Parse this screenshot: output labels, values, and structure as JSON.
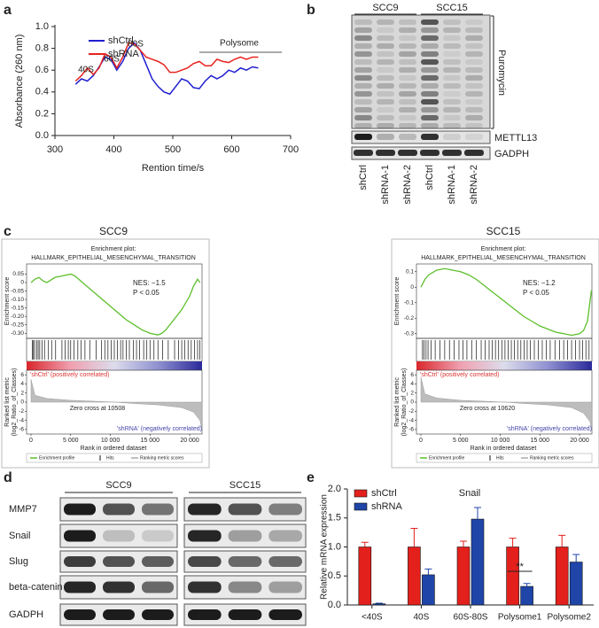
{
  "panel_labels": [
    "a",
    "b",
    "c",
    "d",
    "e"
  ],
  "chart_data": [
    {
      "type": "line",
      "x_label": "Rention time/s",
      "y_label": "Absorbance (260 nm)",
      "xlim": [
        300,
        700
      ],
      "xticks": [
        300,
        400,
        500,
        600,
        700
      ],
      "ylim": [
        0,
        1.0
      ],
      "yticks": [
        {
          "value": 0,
          "label": "0.0"
        },
        0.2,
        0.4,
        0.6,
        0.8,
        {
          "value": 1.0,
          "label": "1.0"
        }
      ],
      "x": [
        335,
        345,
        355,
        365,
        375,
        385,
        395,
        405,
        415,
        425,
        435,
        445,
        455,
        465,
        475,
        485,
        495,
        505,
        515,
        525,
        535,
        545,
        555,
        565,
        575,
        585,
        595,
        605,
        615,
        625,
        635,
        645
      ],
      "series": [
        {
          "name": "shCtrl",
          "color": "#1f1fd0",
          "values": [
            0.47,
            0.52,
            0.5,
            0.55,
            0.63,
            0.72,
            0.7,
            0.6,
            0.68,
            0.8,
            0.85,
            0.78,
            0.65,
            0.52,
            0.45,
            0.4,
            0.38,
            0.45,
            0.52,
            0.5,
            0.44,
            0.43,
            0.5,
            0.55,
            0.52,
            0.55,
            0.6,
            0.58,
            0.62,
            0.6,
            0.63,
            0.62
          ]
        },
        {
          "name": "shRNA",
          "color": "#e8231f",
          "values": [
            0.5,
            0.55,
            0.62,
            0.56,
            0.62,
            0.75,
            0.72,
            0.62,
            0.72,
            0.85,
            0.84,
            0.78,
            0.72,
            0.7,
            0.68,
            0.65,
            0.58,
            0.58,
            0.6,
            0.62,
            0.66,
            0.68,
            0.64,
            0.64,
            0.7,
            0.68,
            0.67,
            0.7,
            0.72,
            0.7,
            0.72,
            0.72
          ]
        }
      ],
      "annotations": [
        "40S",
        "60S",
        "80S",
        "Polysome"
      ],
      "legend": "upper left"
    },
    {
      "type": "gsea",
      "title": "SCC9",
      "subtitle": "Enrichment plot:",
      "plot_title": "HALLMARK_EPITHELIAL_MESENCHYMAL_TRANSITION",
      "y_label": "Enrichment score",
      "color": "#5cbf2a",
      "xlim": [
        -560,
        21560
      ],
      "xticks": [
        0,
        {
          "value": 5000,
          "label": "5 000"
        },
        {
          "value": 10000,
          "label": "10 000"
        },
        {
          "value": 15000,
          "label": "15 000"
        },
        {
          "value": 20000,
          "label": "20 000"
        }
      ],
      "ylim": [
        -0.33,
        0.11
      ],
      "yticks": [
        0.05,
        0,
        -0.05,
        {
          "value": -0.1,
          "label": "-0.10"
        },
        -0.15,
        {
          "value": -0.2,
          "label": "-0.20"
        },
        -0.25,
        {
          "value": -0.3,
          "label": "-0.30"
        }
      ],
      "x": [
        0,
        500,
        1000,
        1500,
        2000,
        3000,
        4000,
        5000,
        5500,
        6000,
        7000,
        8000,
        9000,
        10000,
        11000,
        12000,
        13000,
        14000,
        15000,
        16000,
        16500,
        17000,
        18000,
        19000,
        20000,
        20500,
        21000,
        21300
      ],
      "values": [
        0,
        0.02,
        0.03,
        0.01,
        0,
        0.03,
        0.04,
        0.05,
        0.04,
        0.02,
        -0.02,
        -0.06,
        -0.1,
        -0.14,
        -0.18,
        -0.22,
        -0.25,
        -0.28,
        -0.3,
        -0.31,
        -0.3,
        -0.28,
        -0.22,
        -0.16,
        -0.08,
        -0.02,
        0.02,
        0
      ],
      "nes": "NES: −1.5",
      "p_value": "P < 0.05",
      "hits": [
        150,
        300,
        450,
        700,
        900,
        1100,
        1400,
        1700,
        2200,
        2600,
        3100,
        3900,
        4300,
        4700,
        5000,
        5400,
        5900,
        6300,
        6800,
        7400,
        8200,
        8900,
        9300,
        9700,
        10100,
        10500,
        10900,
        11300,
        11600,
        12000,
        12400,
        12900,
        13300,
        13700,
        14200,
        14600,
        15000,
        15500,
        16000,
        16600,
        17300,
        18100,
        18600,
        19000,
        19400,
        19800,
        20200,
        20600,
        21000,
        21300
      ],
      "metric_label": [
        "Ranked list metric",
        "(log2_Ratio_of_Classes)"
      ],
      "metric_ylim": [
        -7,
        7
      ],
      "metric_yticks": [
        6,
        4,
        2,
        0,
        -2,
        -4,
        -6
      ],
      "metric_x": [
        0,
        500,
        2000,
        5000,
        8000,
        10508,
        13000,
        16000,
        19000,
        20500,
        21300,
        21560
      ],
      "metric_values": [
        5,
        1.5,
        0.8,
        0.4,
        0.2,
        0,
        -0.3,
        -0.6,
        -1.2,
        -2.2,
        -4,
        -6
      ],
      "pos_label": "'shCtrl' (positively correlated)",
      "zero_cross": "Zero cross at 10508",
      "neg_label": "'shRNA' (negatively correlated)",
      "x_label": "Rank in ordered dataset",
      "legend_entries": [
        "Enrichment profile",
        "Hits",
        "Ranking metric scores"
      ]
    },
    {
      "type": "gsea",
      "title": "SCC15",
      "subtitle": "Enrichment plot:",
      "plot_title": "HALLMARK_EPITHELIAL_MESENCHYMAL_TRANSITION",
      "y_label": "Enrichment score",
      "color": "#5cbf2a",
      "xlim": [
        -560,
        21560
      ],
      "xticks": [
        0,
        {
          "value": 5000,
          "label": "5 000"
        },
        {
          "value": 10000,
          "label": "10 000"
        },
        {
          "value": 15000,
          "label": "15 000"
        },
        {
          "value": 20000,
          "label": "20 000"
        }
      ],
      "ylim": [
        -0.33,
        0.15
      ],
      "yticks": [
        0.1,
        0,
        -0.1,
        -0.2,
        -0.3
      ],
      "x": [
        0,
        500,
        1000,
        2000,
        3000,
        4000,
        5000,
        6000,
        7000,
        8000,
        9000,
        10000,
        11000,
        12000,
        13000,
        14000,
        15000,
        16000,
        17000,
        18000,
        19000,
        20000,
        20500,
        21000,
        21300,
        21500
      ],
      "values": [
        0,
        0.05,
        0.08,
        0.11,
        0.12,
        0.11,
        0.1,
        0.08,
        0.05,
        0.01,
        -0.03,
        -0.07,
        -0.11,
        -0.15,
        -0.19,
        -0.22,
        -0.25,
        -0.27,
        -0.29,
        -0.3,
        -0.31,
        -0.3,
        -0.28,
        -0.22,
        -0.1,
        -0.02
      ],
      "nes": "NES: −1.2",
      "p_value": "P < 0.05",
      "hits": [
        200,
        400,
        650,
        900,
        1300,
        1800,
        2400,
        3000,
        3600,
        4200,
        4800,
        5300,
        5800,
        6400,
        7000,
        7600,
        8100,
        8600,
        9000,
        9400,
        9800,
        10200,
        10600,
        11000,
        11400,
        11800,
        12200,
        12600,
        13000,
        13400,
        13800,
        14300,
        14800,
        15300,
        15800,
        16300,
        16900,
        17500,
        18000,
        18500,
        19000,
        19500,
        20000,
        20400,
        20800,
        21200
      ],
      "metric_label": [
        "Ranked list metric",
        "(log2_Ratio_of_Classes)"
      ],
      "metric_ylim": [
        -7,
        7
      ],
      "metric_yticks": [
        6,
        4,
        2,
        0,
        -2,
        -4,
        -6
      ],
      "metric_x": [
        0,
        500,
        2000,
        5000,
        8000,
        10620,
        13000,
        16000,
        19000,
        20500,
        21300,
        21560
      ],
      "metric_values": [
        5.5,
        1.8,
        0.9,
        0.4,
        0.2,
        0,
        -0.3,
        -0.6,
        -1.2,
        -2.4,
        -4.2,
        -6
      ],
      "pos_label": "'shCtrl' (positively correlated)",
      "zero_cross": "Zero cross at 10620",
      "neg_label": "'shRNA' (negatively correlated)",
      "x_label": "Rank in ordered dataset",
      "legend_entries": [
        "Enrichment profile",
        "Hits",
        "Ranking metric scores"
      ]
    },
    {
      "type": "bar",
      "title": "Snail",
      "y_label": "Relative mRNA expression",
      "categories": [
        "<40S",
        "40S",
        "60S-80S",
        "Polysome1",
        "Polysome2"
      ],
      "ylim": [
        0,
        2.0
      ],
      "yticks": [
        {
          "value": 0,
          "label": "0.0"
        },
        0.5,
        {
          "value": 1.0,
          "label": "1.0"
        },
        1.5,
        {
          "value": 2.0,
          "label": "2.0"
        }
      ],
      "series": [
        {
          "name": "shCtrl",
          "color": "#e3201c",
          "values": [
            1.0,
            1.0,
            1.0,
            1.0,
            1.0
          ],
          "errors": [
            0.08,
            0.32,
            0.1,
            0.15,
            0.2
          ]
        },
        {
          "name": "shRNA",
          "color": "#1f45a8",
          "values": [
            0.02,
            0.52,
            1.48,
            0.32,
            0.74
          ],
          "errors": [
            0.01,
            0.1,
            0.2,
            0.05,
            0.13
          ]
        }
      ],
      "annotations": [
        "**"
      ]
    }
  ],
  "blot_b": {
    "groups": [
      "SCC9",
      "SCC15"
    ],
    "proteins": [
      "Puromycin",
      "METTL13",
      "GADPH"
    ],
    "lanes": [
      "shCtrl",
      "shRNA-1",
      "shRNA-2",
      "shCtrl",
      "shRNA-1",
      "shRNA-2"
    ]
  },
  "blot_d": {
    "groups": [
      "SCC9",
      "SCC15"
    ],
    "proteins": [
      "MMP7",
      "Snail",
      "Slug",
      "beta-catenin",
      "GADPH"
    ]
  }
}
